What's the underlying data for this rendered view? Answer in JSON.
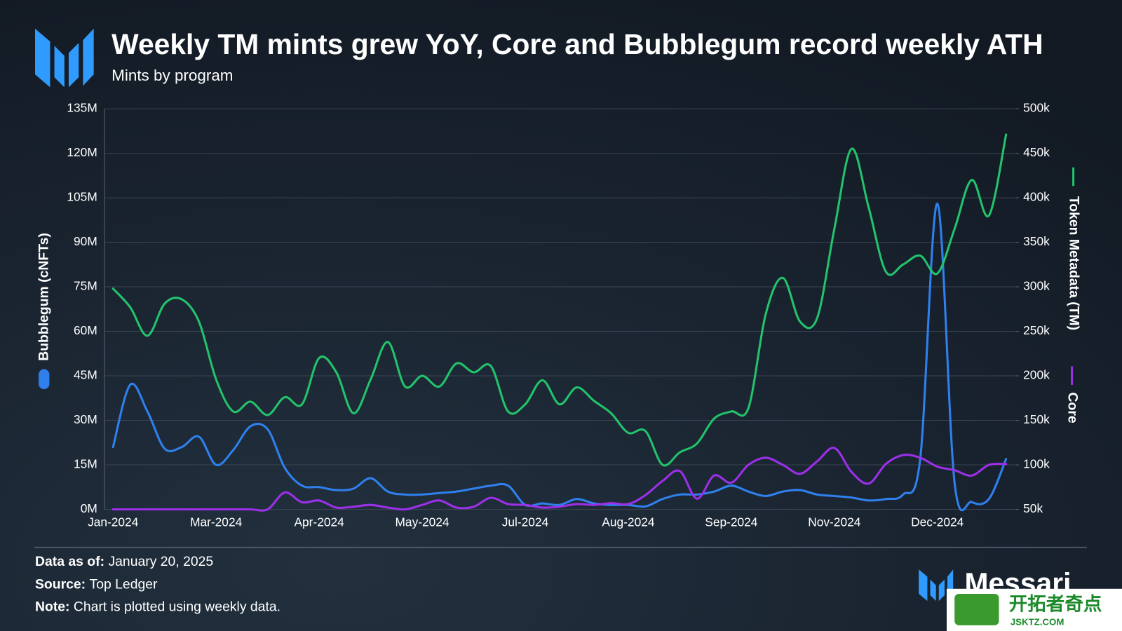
{
  "chart_data": {
    "type": "line",
    "title": "Weekly TM mints grew YoY, Core and Bubblegum record weekly ATH",
    "subtitle": "Mints by program",
    "categories": [
      "Jan-2024",
      null,
      null,
      null,
      null,
      null,
      "Mar-2024",
      null,
      null,
      null,
      null,
      null,
      "Apr-2024",
      null,
      null,
      null,
      null,
      null,
      "May-2024",
      null,
      null,
      null,
      null,
      null,
      "Jul-2024",
      null,
      null,
      null,
      null,
      null,
      "Aug-2024",
      null,
      null,
      null,
      null,
      null,
      "Sep-2024",
      null,
      null,
      null,
      null,
      null,
      "Nov-2024",
      null,
      null,
      null,
      null,
      null,
      "Dec-2024",
      null,
      null,
      null,
      null
    ],
    "series": [
      {
        "name": "Bubblegum (cNFTs)",
        "color": "#2f80ed",
        "values": [
          21000000,
          42000000,
          33000000,
          20500000,
          21000000,
          24500000,
          15000000,
          20000000,
          28000000,
          27000000,
          14000000,
          8000000,
          7500000,
          6500000,
          7000000,
          10500000,
          6000000,
          5000000,
          5000000,
          5500000,
          6000000,
          7000000,
          8000000,
          8000000,
          1500000,
          2000000,
          1500000,
          3500000,
          2000000,
          1500000,
          1500000,
          1000000,
          3500000,
          5000000,
          5000000,
          6000000,
          8000000,
          6000000,
          4500000,
          6000000,
          6500000,
          5000000,
          4500000,
          4000000,
          3000000,
          3500000,
          5000000,
          17000000,
          103000000,
          9000000,
          2500000,
          3500000,
          17000000
        ]
      },
      {
        "name": "Token Metadata (TM)",
        "color": "#22c36b",
        "axis": "y2",
        "values": [
          298000,
          277000,
          245000,
          281000,
          286000,
          261000,
          196000,
          160000,
          171000,
          156000,
          176000,
          168000,
          220000,
          204000,
          158000,
          196000,
          238000,
          188000,
          200000,
          188000,
          214000,
          204000,
          211000,
          160000,
          168000,
          195000,
          168000,
          187000,
          172000,
          158000,
          136000,
          138000,
          100000,
          114000,
          124000,
          152000,
          160000,
          164000,
          269000,
          310000,
          261000,
          265000,
          365000,
          455000,
          389000,
          317000,
          325000,
          335000,
          315000,
          365000,
          420000,
          380000,
          471000
        ]
      },
      {
        "name": "Core",
        "color": "#9b30e8",
        "axis": "y2",
        "values": [
          50000,
          50000,
          50000,
          50000,
          50000,
          50000,
          50000,
          50000,
          50000,
          50000,
          69000,
          58000,
          60000,
          52000,
          53000,
          55000,
          52000,
          50000,
          55000,
          60000,
          52000,
          53000,
          63000,
          56000,
          55000,
          52000,
          53000,
          56000,
          55000,
          57000,
          56000,
          66000,
          82000,
          93000,
          62000,
          88000,
          80000,
          100000,
          108000,
          100000,
          90000,
          104000,
          119000,
          92000,
          79000,
          101000,
          111000,
          108000,
          98000,
          94000,
          88000,
          100000,
          101000
        ]
      }
    ],
    "ylim": [
      0,
      135000000
    ],
    "yticks": [
      {
        "value": 0,
        "label": "0M"
      },
      {
        "value": 15000000,
        "label": "15M"
      },
      {
        "value": 30000000,
        "label": "30M"
      },
      {
        "value": 45000000,
        "label": "45M"
      },
      {
        "value": 60000000,
        "label": "60M"
      },
      {
        "value": 75000000,
        "label": "75M"
      },
      {
        "value": 90000000,
        "label": "90M"
      },
      {
        "value": 105000000,
        "label": "105M"
      },
      {
        "value": 120000000,
        "label": "120M"
      },
      {
        "value": 135000000,
        "label": "135M"
      }
    ],
    "y2lim": [
      50000,
      500000
    ],
    "y2ticks": [
      {
        "value": 50000,
        "label": "50k"
      },
      {
        "value": 100000,
        "label": "100k"
      },
      {
        "value": 150000,
        "label": "150k"
      },
      {
        "value": 200000,
        "label": "200k"
      },
      {
        "value": 250000,
        "label": "250k"
      },
      {
        "value": 300000,
        "label": "300k"
      },
      {
        "value": 350000,
        "label": "350k"
      },
      {
        "value": 400000,
        "label": "400k"
      },
      {
        "value": 450000,
        "label": "450k"
      },
      {
        "value": 500000,
        "label": "500k"
      }
    ],
    "grid": true
  },
  "footer": {
    "date_label": "Data as of:",
    "date": "January 20, 2025",
    "source_label": "Source:",
    "source": "Top Ledger",
    "note_label": "Note:",
    "note": "Chart is plotted using weekly data.",
    "brand": "Messari"
  },
  "watermark": {
    "text": "开拓者奇点",
    "url": "JSKTZ.COM"
  }
}
